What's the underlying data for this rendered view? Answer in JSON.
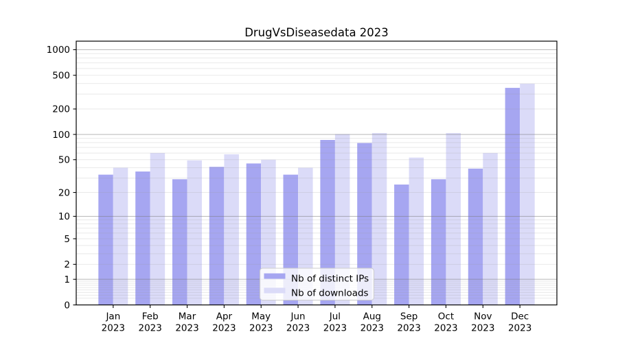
{
  "chart_data": {
    "type": "bar",
    "title": "DrugVsDiseasedata 2023",
    "xlabel": "",
    "ylabel": "",
    "yscale": "symlog ln(1+y)",
    "yticks": [
      0,
      1,
      2,
      5,
      10,
      20,
      50,
      100,
      200,
      500,
      1000
    ],
    "ylim": [
      0,
      1260
    ],
    "grid": "horizontal major+minor",
    "legend_position": "lower center",
    "x_tick_labels": [
      [
        "Jan",
        "2023"
      ],
      [
        "Feb",
        "2023"
      ],
      [
        "Mar",
        "2023"
      ],
      [
        "Apr",
        "2023"
      ],
      [
        "May",
        "2023"
      ],
      [
        "Jun",
        "2023"
      ],
      [
        "Jul",
        "2023"
      ],
      [
        "Aug",
        "2023"
      ],
      [
        "Sep",
        "2023"
      ],
      [
        "Oct",
        "2023"
      ],
      [
        "Nov",
        "2023"
      ],
      [
        "Dec",
        "2023"
      ]
    ],
    "series": [
      {
        "name": "Nb of distinct IPs",
        "color": "#a6a6f1",
        "values": [
          33,
          36,
          29,
          41,
          45,
          33,
          86,
          79,
          25,
          29,
          39,
          355
        ]
      },
      {
        "name": "Nb of downloads",
        "color": "#dbdbf8",
        "values": [
          40,
          60,
          49,
          58,
          50,
          40,
          101,
          104,
          53,
          104,
          60,
          398
        ]
      }
    ]
  },
  "colors": {
    "background": "#ffffff",
    "axis": "#000000",
    "major_grid": "#c4c4c4",
    "minor_grid": "#e9e9e9",
    "legend_border": "#cccccc",
    "legend_background": "#ffffff",
    "text": "#000000"
  }
}
